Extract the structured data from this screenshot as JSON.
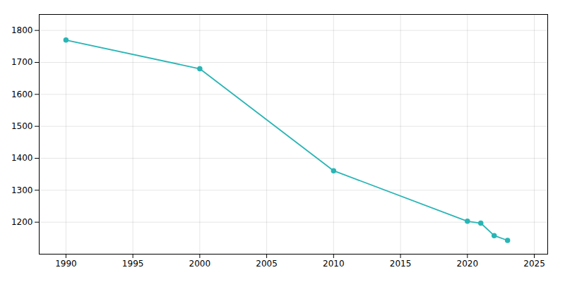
{
  "chart_data": {
    "type": "line",
    "x": [
      1990,
      2000,
      2010,
      2020,
      2021,
      2022,
      2023
    ],
    "values": [
      1770,
      1680,
      1361,
      1203,
      1197,
      1158,
      1143
    ],
    "color": "#2ab5b5",
    "marker": "circle",
    "xlim": [
      1988,
      2026
    ],
    "ylim": [
      1100,
      1850
    ],
    "xticks": [
      1990,
      1995,
      2000,
      2005,
      2010,
      2015,
      2020,
      2025
    ],
    "yticks": [
      1200,
      1300,
      1400,
      1500,
      1600,
      1700,
      1800
    ],
    "grid": true
  }
}
